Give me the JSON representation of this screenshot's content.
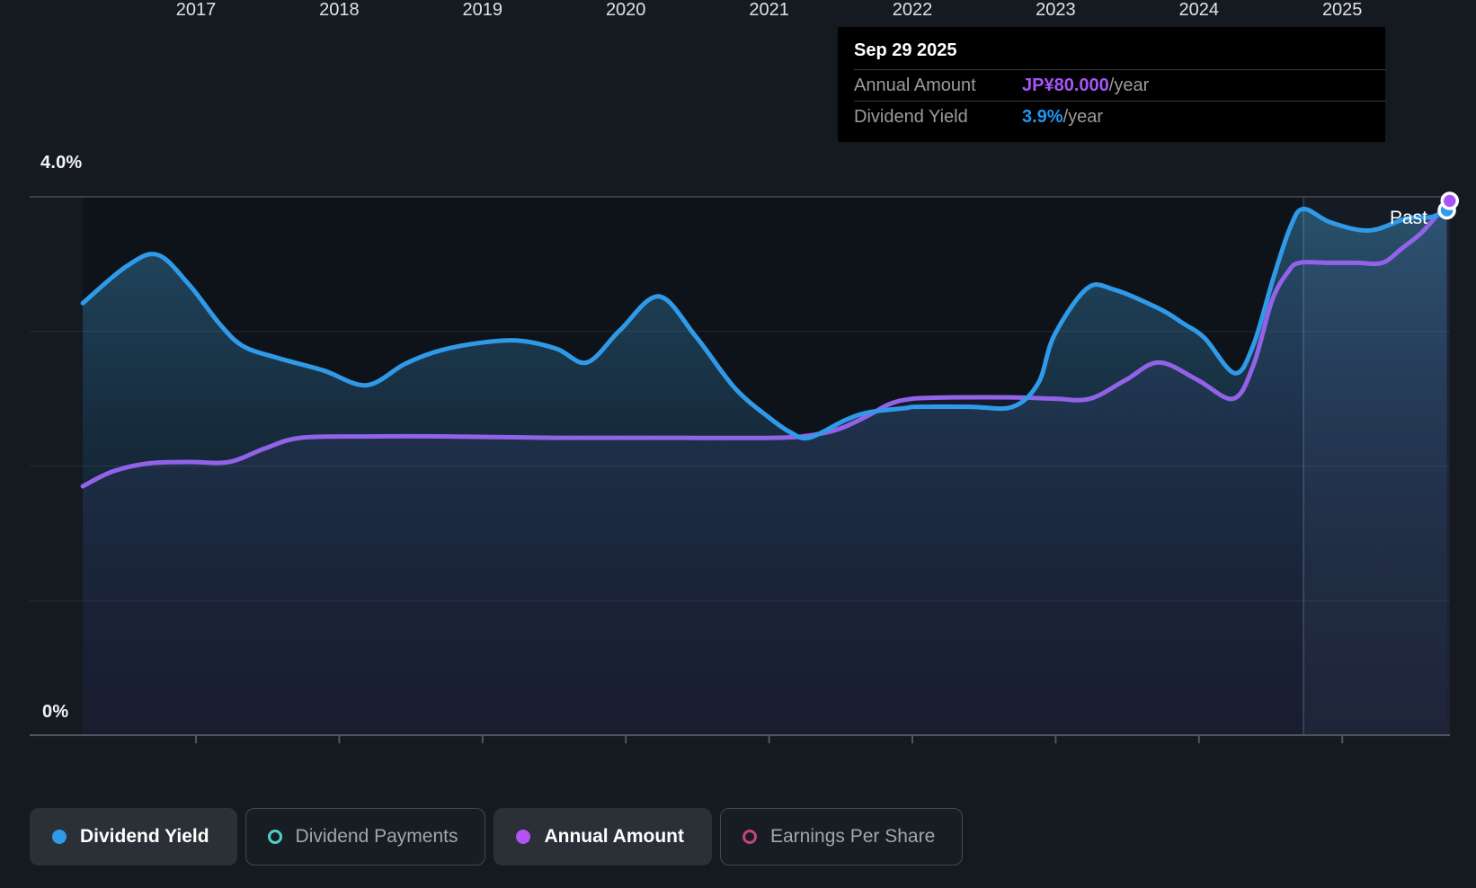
{
  "page": {
    "background": "#151a21",
    "plot_background": "#0e1319"
  },
  "tooltip": {
    "date": "Sep 29 2025",
    "rows": [
      {
        "label": "Annual Amount",
        "value": "JP¥80.000",
        "suffix": "/year",
        "color": "#a855f7"
      },
      {
        "label": "Dividend Yield",
        "value": "3.9%",
        "suffix": "/year",
        "color": "#2196f3"
      }
    ]
  },
  "axis": {
    "y_top_label": "4.0%",
    "y_bottom_label": "0%",
    "x_labels": [
      "2017",
      "2018",
      "2019",
      "2020",
      "2021",
      "2022",
      "2023",
      "2024",
      "2025"
    ]
  },
  "past_label": "Past",
  "legend": [
    {
      "label": "Dividend Yield",
      "color": "#2f9ae8",
      "style": "filled",
      "active": true
    },
    {
      "label": "Dividend Payments",
      "color": "#4fd1c5",
      "style": "hollow",
      "active": false
    },
    {
      "label": "Annual Amount",
      "color": "#b253f2",
      "style": "filled",
      "active": true
    },
    {
      "label": "Earnings Per Share",
      "color": "#c2447e",
      "style": "hollow",
      "active": false
    }
  ],
  "chart_data": {
    "type": "area",
    "x_ticks": [
      2017,
      2018,
      2019,
      2020,
      2021,
      2022,
      2023,
      2024,
      2025
    ],
    "x_range": [
      2016.21,
      2025.75
    ],
    "ylim": [
      0,
      4.27
    ],
    "y_unit": "%",
    "gridlines_pct": [
      1,
      2,
      3
    ],
    "top_gridline_pct": 4.0,
    "past_region_start": 2024.73,
    "latest": {
      "date": "Sep 29 2025",
      "annual_amount": "JP¥80.000/year",
      "dividend_yield_pct": 3.9
    },
    "series": [
      {
        "name": "Dividend Yield",
        "color": "#2f9ae8",
        "fill": "blue",
        "points": [
          [
            2016.21,
            3.21
          ],
          [
            2016.51,
            3.48
          ],
          [
            2016.73,
            3.57
          ],
          [
            2016.95,
            3.35
          ],
          [
            2017.17,
            3.05
          ],
          [
            2017.33,
            2.89
          ],
          [
            2017.58,
            2.8
          ],
          [
            2017.89,
            2.71
          ],
          [
            2018.19,
            2.6
          ],
          [
            2018.46,
            2.76
          ],
          [
            2018.71,
            2.86
          ],
          [
            2019.02,
            2.92
          ],
          [
            2019.27,
            2.93
          ],
          [
            2019.52,
            2.87
          ],
          [
            2019.73,
            2.77
          ],
          [
            2019.96,
            3.01
          ],
          [
            2020.23,
            3.26
          ],
          [
            2020.49,
            2.96
          ],
          [
            2020.76,
            2.58
          ],
          [
            2021.0,
            2.36
          ],
          [
            2021.15,
            2.25
          ],
          [
            2021.28,
            2.21
          ],
          [
            2021.53,
            2.34
          ],
          [
            2021.7,
            2.4
          ],
          [
            2021.95,
            2.43
          ],
          [
            2022.03,
            2.44
          ],
          [
            2022.4,
            2.44
          ],
          [
            2022.7,
            2.44
          ],
          [
            2022.88,
            2.62
          ],
          [
            2022.99,
            2.97
          ],
          [
            2023.22,
            3.32
          ],
          [
            2023.41,
            3.31
          ],
          [
            2023.72,
            3.17
          ],
          [
            2023.89,
            3.06
          ],
          [
            2024.04,
            2.95
          ],
          [
            2024.25,
            2.69
          ],
          [
            2024.38,
            2.9
          ],
          [
            2024.52,
            3.4
          ],
          [
            2024.64,
            3.78
          ],
          [
            2024.73,
            3.91
          ],
          [
            2024.92,
            3.81
          ],
          [
            2025.19,
            3.75
          ],
          [
            2025.45,
            3.84
          ],
          [
            2025.62,
            3.85
          ],
          [
            2025.73,
            3.9
          ]
        ]
      },
      {
        "name": "Annual Amount",
        "color": "#9262e8",
        "fill": "purple",
        "points": [
          [
            2016.21,
            1.85
          ],
          [
            2016.42,
            1.96
          ],
          [
            2016.67,
            2.02
          ],
          [
            2016.95,
            2.03
          ],
          [
            2017.23,
            2.03
          ],
          [
            2017.48,
            2.13
          ],
          [
            2017.73,
            2.21
          ],
          [
            2018.2,
            2.22
          ],
          [
            2018.77,
            2.22
          ],
          [
            2019.5,
            2.21
          ],
          [
            2020.2,
            2.21
          ],
          [
            2021.03,
            2.21
          ],
          [
            2021.3,
            2.23
          ],
          [
            2021.5,
            2.28
          ],
          [
            2021.7,
            2.38
          ],
          [
            2021.84,
            2.46
          ],
          [
            2022.0,
            2.5
          ],
          [
            2022.28,
            2.51
          ],
          [
            2022.7,
            2.51
          ],
          [
            2023.0,
            2.5
          ],
          [
            2023.24,
            2.5
          ],
          [
            2023.49,
            2.64
          ],
          [
            2023.72,
            2.77
          ],
          [
            2023.99,
            2.64
          ],
          [
            2024.24,
            2.5
          ],
          [
            2024.38,
            2.75
          ],
          [
            2024.51,
            3.23
          ],
          [
            2024.62,
            3.44
          ],
          [
            2024.7,
            3.51
          ],
          [
            2024.9,
            3.51
          ],
          [
            2025.1,
            3.51
          ],
          [
            2025.28,
            3.51
          ],
          [
            2025.42,
            3.62
          ],
          [
            2025.55,
            3.73
          ],
          [
            2025.66,
            3.86
          ],
          [
            2025.75,
            3.97
          ]
        ]
      }
    ],
    "markers": [
      {
        "series": "Dividend Yield",
        "x": 2025.73,
        "y": 3.9,
        "color": "#2f9ae8"
      },
      {
        "series": "Annual Amount",
        "x": 2025.75,
        "y": 3.97,
        "color": "#a855f7"
      }
    ]
  }
}
